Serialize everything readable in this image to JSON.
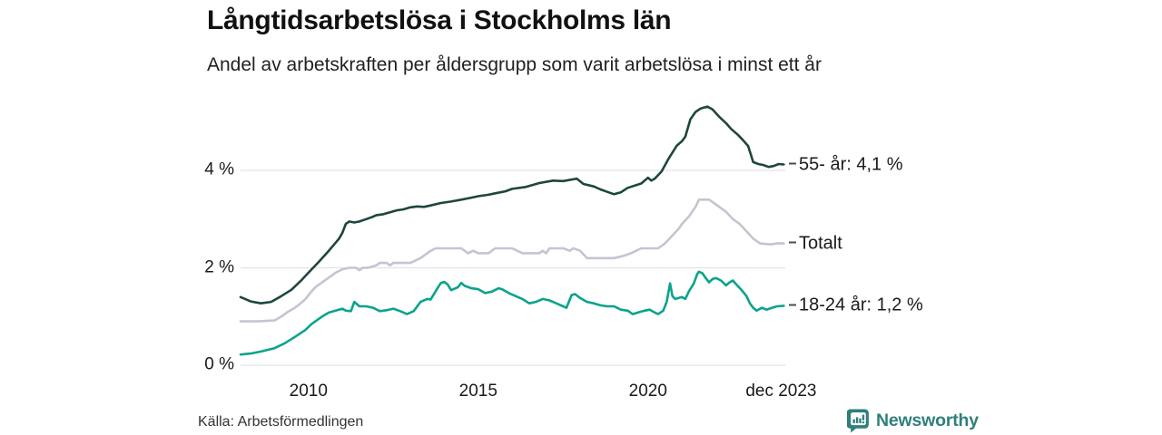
{
  "chart_data": {
    "type": "line",
    "title": "Långtidsarbetslösa i Stockholms län",
    "subtitle": "Andel av arbetskraften per åldersgrupp som varit arbetslösa i minst ett år",
    "source": "Källa: Arbetsförmedlingen",
    "branding": "Newsworthy",
    "xlabel": "",
    "ylabel": "",
    "x_domain": [
      2008.0,
      2024.05
    ],
    "y_domain": [
      0,
      5.6
    ],
    "grid": "horizontal",
    "legend_position": "right-of-line-ends",
    "y_ticks": [
      {
        "value": 0,
        "label": "0 %"
      },
      {
        "value": 2,
        "label": "2 %"
      },
      {
        "value": 4,
        "label": "4 %"
      }
    ],
    "x_ticks": [
      {
        "value": 2010,
        "label": "2010"
      },
      {
        "value": 2015,
        "label": "2015"
      },
      {
        "value": 2020,
        "label": "2020"
      },
      {
        "value": 2023.92,
        "label": "dec 2023"
      }
    ],
    "colors": {
      "55_ar": "#1d463f",
      "totalt": "#c6c3d2",
      "18_24_ar": "#0ba38b",
      "gridline": "#e4e2ea",
      "label_dash": "#4d4d4d",
      "brand_teal": "#2f7f7c"
    },
    "series": [
      {
        "name": "Totalt",
        "end_label": "Totalt",
        "color": "#c6c3d2",
        "points": [
          [
            2008.0,
            0.9
          ],
          [
            2008.5,
            0.9
          ],
          [
            2009.0,
            0.92
          ],
          [
            2009.2,
            1.0
          ],
          [
            2009.4,
            1.1
          ],
          [
            2009.6,
            1.18
          ],
          [
            2009.75,
            1.26
          ],
          [
            2009.9,
            1.35
          ],
          [
            2010.05,
            1.48
          ],
          [
            2010.2,
            1.6
          ],
          [
            2010.4,
            1.7
          ],
          [
            2010.6,
            1.8
          ],
          [
            2010.8,
            1.9
          ],
          [
            2011.0,
            1.97
          ],
          [
            2011.2,
            2.0
          ],
          [
            2011.4,
            2.0
          ],
          [
            2011.5,
            1.95
          ],
          [
            2011.6,
            2.0
          ],
          [
            2011.75,
            2.0
          ],
          [
            2012.0,
            2.05
          ],
          [
            2012.1,
            2.1
          ],
          [
            2012.3,
            2.1
          ],
          [
            2012.4,
            2.05
          ],
          [
            2012.5,
            2.1
          ],
          [
            2013.0,
            2.1
          ],
          [
            2013.3,
            2.2
          ],
          [
            2013.5,
            2.3
          ],
          [
            2013.6,
            2.35
          ],
          [
            2013.75,
            2.4
          ],
          [
            2014.5,
            2.4
          ],
          [
            2014.7,
            2.3
          ],
          [
            2014.85,
            2.35
          ],
          [
            2015.0,
            2.3
          ],
          [
            2015.3,
            2.3
          ],
          [
            2015.5,
            2.4
          ],
          [
            2016.0,
            2.4
          ],
          [
            2016.3,
            2.3
          ],
          [
            2016.8,
            2.3
          ],
          [
            2016.9,
            2.35
          ],
          [
            2017.0,
            2.3
          ],
          [
            2017.1,
            2.4
          ],
          [
            2017.5,
            2.4
          ],
          [
            2017.7,
            2.35
          ],
          [
            2017.8,
            2.4
          ],
          [
            2018.0,
            2.35
          ],
          [
            2018.2,
            2.2
          ],
          [
            2019.0,
            2.2
          ],
          [
            2019.3,
            2.25
          ],
          [
            2019.5,
            2.3
          ],
          [
            2019.8,
            2.4
          ],
          [
            2020.3,
            2.4
          ],
          [
            2020.5,
            2.5
          ],
          [
            2020.7,
            2.65
          ],
          [
            2020.9,
            2.8
          ],
          [
            2021.0,
            2.9
          ],
          [
            2021.2,
            3.05
          ],
          [
            2021.4,
            3.25
          ],
          [
            2021.5,
            3.4
          ],
          [
            2021.8,
            3.4
          ],
          [
            2021.9,
            3.35
          ],
          [
            2022.1,
            3.25
          ],
          [
            2022.3,
            3.15
          ],
          [
            2022.5,
            3.0
          ],
          [
            2022.7,
            2.9
          ],
          [
            2022.9,
            2.75
          ],
          [
            2023.1,
            2.6
          ],
          [
            2023.3,
            2.5
          ],
          [
            2023.6,
            2.48
          ],
          [
            2023.8,
            2.5
          ],
          [
            2024.0,
            2.5
          ]
        ]
      },
      {
        "name": "18-24 år",
        "end_label": "18-24 år: 1,2 %",
        "color": "#0ba38b",
        "points": [
          [
            2008.0,
            0.22
          ],
          [
            2008.3,
            0.24
          ],
          [
            2008.6,
            0.28
          ],
          [
            2009.0,
            0.35
          ],
          [
            2009.3,
            0.45
          ],
          [
            2009.6,
            0.58
          ],
          [
            2009.9,
            0.72
          ],
          [
            2010.1,
            0.85
          ],
          [
            2010.4,
            1.0
          ],
          [
            2010.6,
            1.08
          ],
          [
            2010.8,
            1.12
          ],
          [
            2011.0,
            1.16
          ],
          [
            2011.1,
            1.12
          ],
          [
            2011.25,
            1.11
          ],
          [
            2011.35,
            1.3
          ],
          [
            2011.5,
            1.21
          ],
          [
            2011.7,
            1.21
          ],
          [
            2011.9,
            1.18
          ],
          [
            2012.1,
            1.11
          ],
          [
            2012.3,
            1.13
          ],
          [
            2012.5,
            1.16
          ],
          [
            2012.7,
            1.11
          ],
          [
            2012.9,
            1.05
          ],
          [
            2013.1,
            1.11
          ],
          [
            2013.3,
            1.3
          ],
          [
            2013.5,
            1.36
          ],
          [
            2013.6,
            1.35
          ],
          [
            2013.8,
            1.58
          ],
          [
            2013.9,
            1.69
          ],
          [
            2014.0,
            1.71
          ],
          [
            2014.1,
            1.66
          ],
          [
            2014.2,
            1.54
          ],
          [
            2014.4,
            1.6
          ],
          [
            2014.5,
            1.69
          ],
          [
            2014.6,
            1.63
          ],
          [
            2014.8,
            1.58
          ],
          [
            2015.0,
            1.56
          ],
          [
            2015.2,
            1.48
          ],
          [
            2015.4,
            1.51
          ],
          [
            2015.6,
            1.58
          ],
          [
            2015.7,
            1.56
          ],
          [
            2015.9,
            1.48
          ],
          [
            2016.1,
            1.42
          ],
          [
            2016.3,
            1.36
          ],
          [
            2016.5,
            1.27
          ],
          [
            2016.7,
            1.3
          ],
          [
            2016.9,
            1.36
          ],
          [
            2017.1,
            1.33
          ],
          [
            2017.3,
            1.27
          ],
          [
            2017.5,
            1.21
          ],
          [
            2017.6,
            1.18
          ],
          [
            2017.75,
            1.44
          ],
          [
            2017.85,
            1.46
          ],
          [
            2018.0,
            1.38
          ],
          [
            2018.2,
            1.3
          ],
          [
            2018.4,
            1.27
          ],
          [
            2018.6,
            1.23
          ],
          [
            2018.8,
            1.21
          ],
          [
            2019.0,
            1.21
          ],
          [
            2019.2,
            1.14
          ],
          [
            2019.4,
            1.12
          ],
          [
            2019.55,
            1.05
          ],
          [
            2019.7,
            1.08
          ],
          [
            2019.9,
            1.12
          ],
          [
            2020.05,
            1.14
          ],
          [
            2020.2,
            1.08
          ],
          [
            2020.3,
            1.05
          ],
          [
            2020.45,
            1.12
          ],
          [
            2020.55,
            1.3
          ],
          [
            2020.65,
            1.68
          ],
          [
            2020.72,
            1.42
          ],
          [
            2020.8,
            1.36
          ],
          [
            2021.0,
            1.4
          ],
          [
            2021.1,
            1.36
          ],
          [
            2021.2,
            1.51
          ],
          [
            2021.35,
            1.68
          ],
          [
            2021.45,
            1.87
          ],
          [
            2021.5,
            1.92
          ],
          [
            2021.6,
            1.89
          ],
          [
            2021.7,
            1.79
          ],
          [
            2021.8,
            1.7
          ],
          [
            2021.9,
            1.77
          ],
          [
            2022.0,
            1.79
          ],
          [
            2022.15,
            1.74
          ],
          [
            2022.3,
            1.64
          ],
          [
            2022.4,
            1.7
          ],
          [
            2022.5,
            1.74
          ],
          [
            2022.6,
            1.66
          ],
          [
            2022.75,
            1.55
          ],
          [
            2022.9,
            1.42
          ],
          [
            2023.0,
            1.27
          ],
          [
            2023.1,
            1.18
          ],
          [
            2023.2,
            1.12
          ],
          [
            2023.35,
            1.18
          ],
          [
            2023.5,
            1.14
          ],
          [
            2023.65,
            1.18
          ],
          [
            2023.8,
            1.21
          ],
          [
            2024.0,
            1.22
          ]
        ]
      },
      {
        "name": "55- år",
        "end_label": "55- år: 4,1 %",
        "color": "#1d463f",
        "points": [
          [
            2008.0,
            1.4
          ],
          [
            2008.3,
            1.31
          ],
          [
            2008.6,
            1.27
          ],
          [
            2008.9,
            1.3
          ],
          [
            2009.2,
            1.42
          ],
          [
            2009.5,
            1.55
          ],
          [
            2009.8,
            1.75
          ],
          [
            2010.0,
            1.9
          ],
          [
            2010.3,
            2.12
          ],
          [
            2010.6,
            2.35
          ],
          [
            2010.9,
            2.6
          ],
          [
            2011.0,
            2.72
          ],
          [
            2011.1,
            2.9
          ],
          [
            2011.2,
            2.95
          ],
          [
            2011.35,
            2.93
          ],
          [
            2011.5,
            2.95
          ],
          [
            2011.7,
            3.0
          ],
          [
            2011.9,
            3.05
          ],
          [
            2012.0,
            3.08
          ],
          [
            2012.2,
            3.1
          ],
          [
            2012.4,
            3.14
          ],
          [
            2012.6,
            3.18
          ],
          [
            2012.8,
            3.2
          ],
          [
            2013.0,
            3.24
          ],
          [
            2013.2,
            3.26
          ],
          [
            2013.4,
            3.25
          ],
          [
            2013.6,
            3.28
          ],
          [
            2013.9,
            3.33
          ],
          [
            2014.2,
            3.36
          ],
          [
            2014.5,
            3.4
          ],
          [
            2014.8,
            3.44
          ],
          [
            2015.0,
            3.47
          ],
          [
            2015.3,
            3.5
          ],
          [
            2015.5,
            3.53
          ],
          [
            2015.8,
            3.57
          ],
          [
            2016.0,
            3.62
          ],
          [
            2016.4,
            3.66
          ],
          [
            2016.8,
            3.74
          ],
          [
            2017.2,
            3.79
          ],
          [
            2017.5,
            3.78
          ],
          [
            2017.9,
            3.83
          ],
          [
            2018.1,
            3.72
          ],
          [
            2018.4,
            3.67
          ],
          [
            2018.6,
            3.61
          ],
          [
            2018.8,
            3.56
          ],
          [
            2019.0,
            3.51
          ],
          [
            2019.2,
            3.55
          ],
          [
            2019.4,
            3.64
          ],
          [
            2019.8,
            3.73
          ],
          [
            2020.0,
            3.85
          ],
          [
            2020.1,
            3.79
          ],
          [
            2020.2,
            3.83
          ],
          [
            2020.4,
            3.98
          ],
          [
            2020.6,
            4.23
          ],
          [
            2020.85,
            4.51
          ],
          [
            2021.0,
            4.6
          ],
          [
            2021.1,
            4.69
          ],
          [
            2021.25,
            5.05
          ],
          [
            2021.4,
            5.2
          ],
          [
            2021.55,
            5.27
          ],
          [
            2021.75,
            5.31
          ],
          [
            2021.9,
            5.25
          ],
          [
            2022.1,
            5.1
          ],
          [
            2022.3,
            4.97
          ],
          [
            2022.45,
            4.85
          ],
          [
            2022.65,
            4.73
          ],
          [
            2022.8,
            4.62
          ],
          [
            2022.95,
            4.5
          ],
          [
            2023.1,
            4.17
          ],
          [
            2023.25,
            4.13
          ],
          [
            2023.4,
            4.11
          ],
          [
            2023.55,
            4.07
          ],
          [
            2023.7,
            4.09
          ],
          [
            2023.85,
            4.13
          ],
          [
            2024.0,
            4.12
          ]
        ]
      }
    ]
  }
}
